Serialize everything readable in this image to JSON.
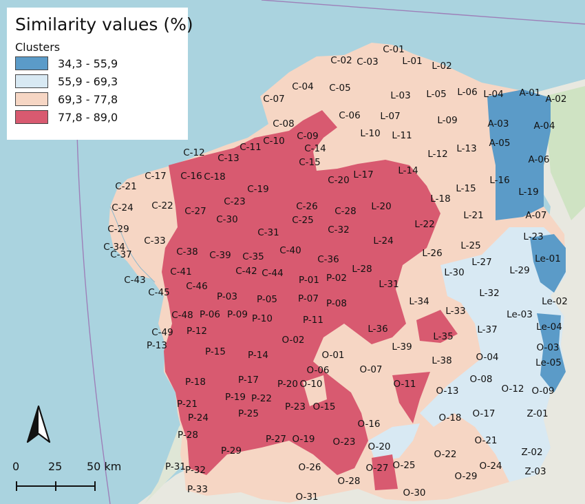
{
  "legend": {
    "title": "Similarity values (%)",
    "subtitle": "Clusters",
    "items": [
      {
        "label": "34,3 - 55,9",
        "color": "#5b9bc8"
      },
      {
        "label": "55,9 - 69,3",
        "color": "#d8e9f3"
      },
      {
        "label": "69,3 - 77,8",
        "color": "#f6d6c4"
      },
      {
        "label": "77,8 - 89,0",
        "color": "#d85a70"
      }
    ]
  },
  "scale": {
    "tick_0": "0",
    "tick_25": "25",
    "tick_50": "50 km"
  },
  "labels": [
    "C-01",
    "C-02",
    "C-03",
    "C-04",
    "C-05",
    "C-06",
    "C-07",
    "C-08",
    "C-09",
    "C-10",
    "C-11",
    "C-12",
    "C-13",
    "C-14",
    "C-15",
    "C-16",
    "C-17",
    "C-18",
    "C-19",
    "C-20",
    "C-21",
    "C-22",
    "C-23",
    "C-24",
    "C-25",
    "C-26",
    "C-27",
    "C-28",
    "C-29",
    "C-30",
    "C-31",
    "C-32",
    "C-33",
    "C-34",
    "C-35",
    "C-36",
    "C-37",
    "C-38",
    "C-39",
    "C-40",
    "C-41",
    "C-42",
    "C-43",
    "C-44",
    "C-45",
    "C-46",
    "C-48",
    "C-49",
    "L-01",
    "L-02",
    "L-03",
    "L-05",
    "L-06",
    "L-04",
    "L-07",
    "L-09",
    "L-10",
    "L-11",
    "L-12",
    "L-13",
    "L-14",
    "L-15",
    "L-16",
    "L-17",
    "L-18",
    "L-19",
    "L-20",
    "L-21",
    "L-22",
    "L-23",
    "L-24",
    "L-25",
    "L-26",
    "L-27",
    "L-28",
    "L-29",
    "L-30",
    "L-31",
    "L-32",
    "L-33",
    "L-34",
    "L-35",
    "L-36",
    "L-37",
    "L-38",
    "L-39",
    "A-01",
    "A-02",
    "A-03",
    "A-04",
    "A-05",
    "A-06",
    "A-07",
    "Le-01",
    "Le-02",
    "Le-03",
    "Le-04",
    "Le-05",
    "P-01",
    "P-02",
    "P-03",
    "P-05",
    "P-06",
    "P-07",
    "P-08",
    "P-09",
    "P-10",
    "P-11",
    "P-12",
    "P-13",
    "P-14",
    "P-15",
    "P-17",
    "P-18",
    "P-19",
    "P-20",
    "P-21",
    "P-22",
    "P-23",
    "P-24",
    "P-25",
    "P-27",
    "P-28",
    "P-29",
    "P-31",
    "P-32",
    "P-33",
    "O-01",
    "O-02",
    "O-03",
    "O-04",
    "O-06",
    "O-07",
    "O-08",
    "O-09",
    "O-10",
    "O-11",
    "O-12",
    "O-13",
    "O-15",
    "O-16",
    "O-17",
    "O-18",
    "O-19",
    "O-20",
    "O-21",
    "O-22",
    "O-23",
    "O-24",
    "O-25",
    "O-26",
    "O-27",
    "O-28",
    "O-29",
    "O-30",
    "O-31",
    "Z-01",
    "Z-02",
    "Z-03"
  ]
}
